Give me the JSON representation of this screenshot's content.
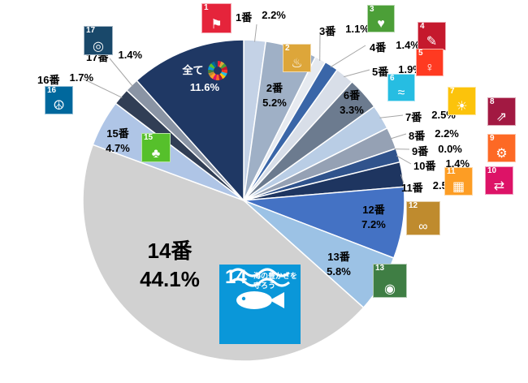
{
  "chart_data": {
    "type": "pie",
    "title": "",
    "categories": [
      "1番",
      "2番",
      "3番",
      "4番",
      "5番",
      "6番",
      "7番",
      "8番",
      "9番",
      "10番",
      "11番",
      "12番",
      "13番",
      "14番",
      "15番",
      "16番",
      "17番",
      "全て"
    ],
    "values": [
      2.2,
      5.2,
      1.1,
      1.4,
      1.9,
      3.3,
      2.5,
      2.2,
      0.0,
      1.4,
      2.5,
      7.2,
      5.8,
      44.1,
      4.7,
      1.7,
      1.4,
      11.6
    ],
    "value_labels": [
      "2.2%",
      "5.2%",
      "1.1%",
      "1.4%",
      "1.9%",
      "3.3%",
      "2.5%",
      "2.2%",
      "0.0%",
      "1.4%",
      "2.5%",
      "7.2%",
      "5.8%",
      "44.1%",
      "4.7%",
      "1.7%",
      "1.4%",
      "11.6%"
    ],
    "slice_colors": [
      "#C4D2E6",
      "#9FB0C6",
      "#E6EAF0",
      "#3A66A8",
      "#D8DEE8",
      "#6C7B8F",
      "#B9CDE5",
      "#95A1B4",
      "#FFFFFF",
      "#30538C",
      "#1E3560",
      "#4472C4",
      "#9CC2E5",
      "#D1D1D1",
      "#AFC5E6",
      "#313E55",
      "#8A94A4",
      "#1F3864"
    ],
    "start_angle_deg": 0,
    "direction": "clockwise",
    "legend": "none",
    "leader_line_color": "#a6a6a6"
  },
  "sdg_icons": [
    {
      "num": 1,
      "color": "#E5243B",
      "glyph": "⚑"
    },
    {
      "num": 2,
      "color": "#DDA63A",
      "glyph": "♨"
    },
    {
      "num": 3,
      "color": "#4C9F38",
      "glyph": "♥"
    },
    {
      "num": 4,
      "color": "#C5192D",
      "glyph": "✎"
    },
    {
      "num": 5,
      "color": "#FF3A21",
      "glyph": "♀"
    },
    {
      "num": 6,
      "color": "#26BDE2",
      "glyph": "≈"
    },
    {
      "num": 7,
      "color": "#FCC30B",
      "glyph": "☀"
    },
    {
      "num": 8,
      "color": "#A21942",
      "glyph": "⇗"
    },
    {
      "num": 9,
      "color": "#FD6925",
      "glyph": "⚙"
    },
    {
      "num": 10,
      "color": "#DD1367",
      "glyph": "⇄"
    },
    {
      "num": 11,
      "color": "#FD9D24",
      "glyph": "▦"
    },
    {
      "num": 12,
      "color": "#BF8B2E",
      "glyph": "∞"
    },
    {
      "num": 13,
      "color": "#3F7E44",
      "glyph": "◉"
    },
    {
      "num": 14,
      "color": "#0A97D9",
      "glyph": "",
      "title": "海の豊かさを守ろう"
    },
    {
      "num": 15,
      "color": "#56C02B",
      "glyph": "♣"
    },
    {
      "num": 16,
      "color": "#00689D",
      "glyph": "☮"
    },
    {
      "num": 17,
      "color": "#19486A",
      "glyph": "◎"
    }
  ]
}
